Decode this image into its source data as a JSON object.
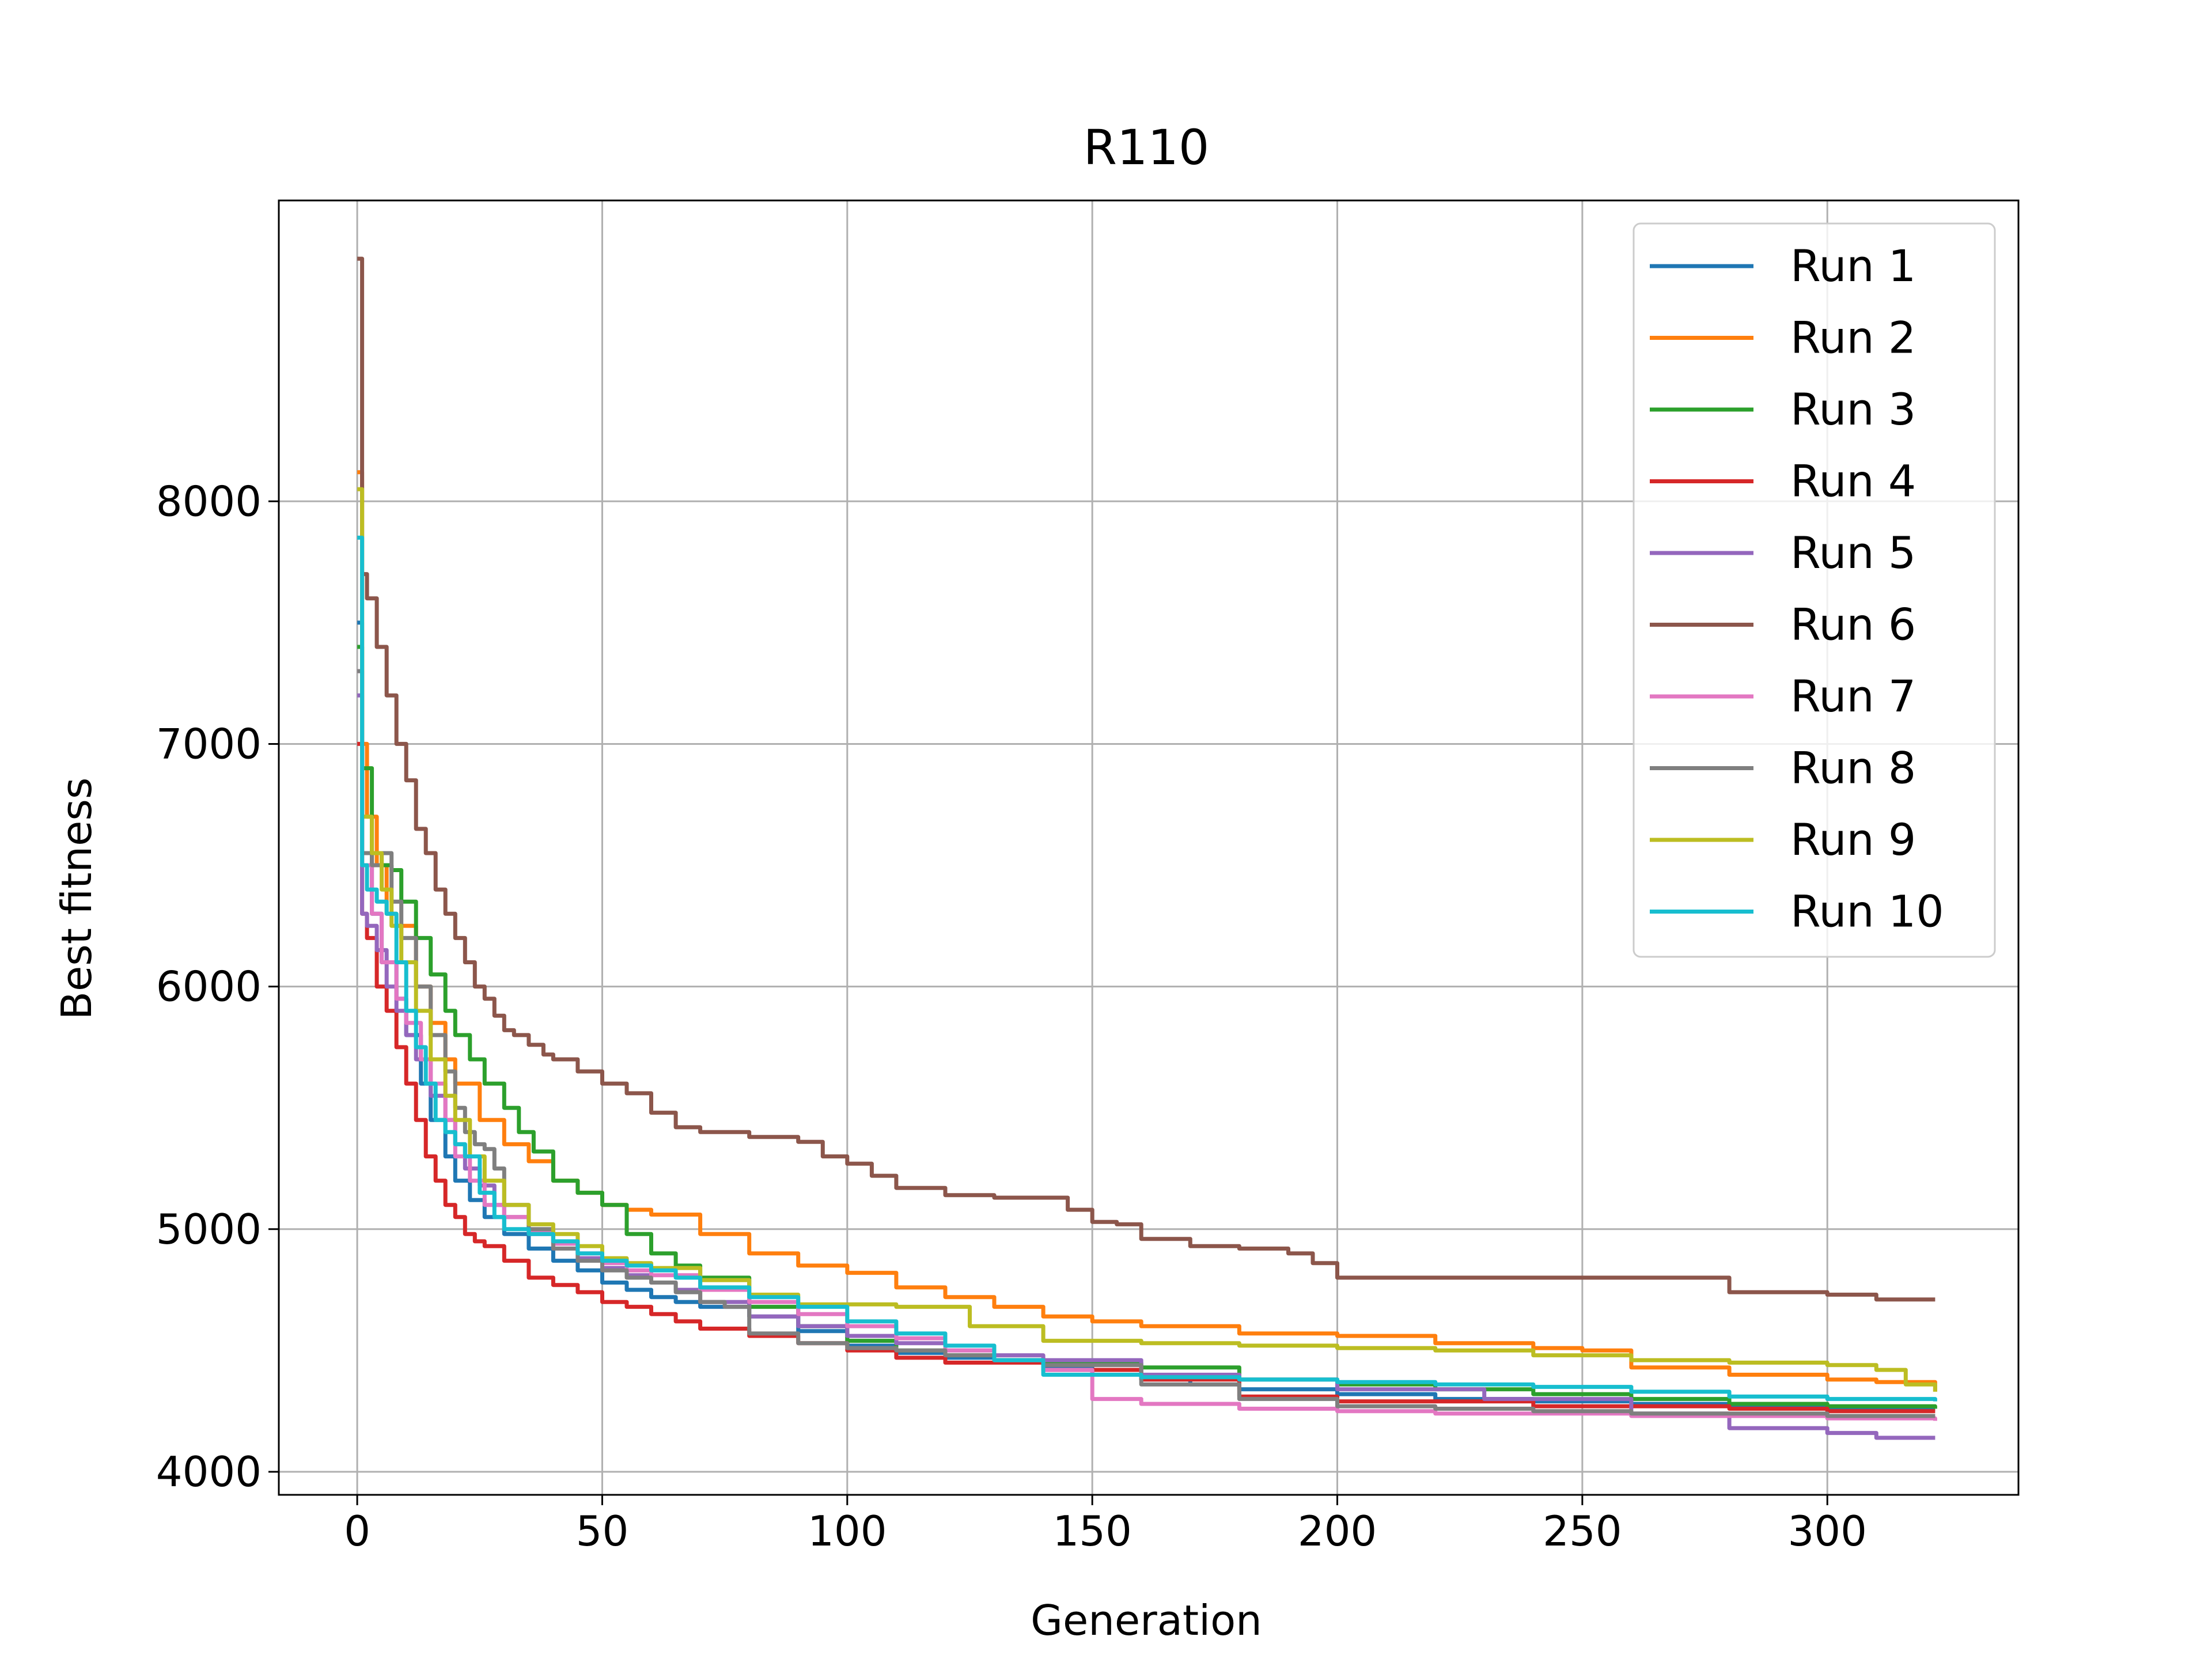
{
  "chart_data": {
    "type": "line",
    "title": "R110",
    "xlabel": "Generation",
    "ylabel": "Best fitness",
    "xlim": [
      -16,
      339
    ],
    "ylim": [
      3905,
      9240
    ],
    "xticks": [
      0,
      50,
      100,
      150,
      200,
      250,
      300
    ],
    "yticks": [
      4000,
      5000,
      6000,
      7000,
      8000
    ],
    "grid": true,
    "legend_position": "top-right",
    "series": [
      {
        "name": "Run 1",
        "color": "#1f77b4",
        "x": [
          0,
          1,
          3,
          5,
          8,
          10,
          13,
          15,
          18,
          20,
          23,
          26,
          30,
          35,
          40,
          45,
          50,
          55,
          60,
          65,
          70,
          80,
          90,
          100,
          110,
          120,
          130,
          140,
          150,
          160,
          170,
          180,
          200,
          220,
          240,
          260,
          280,
          300,
          322
        ],
        "y": [
          7500,
          6500,
          6300,
          6100,
          5950,
          5800,
          5600,
          5450,
          5300,
          5200,
          5120,
          5050,
          4980,
          4920,
          4870,
          4830,
          4780,
          4750,
          4720,
          4700,
          4680,
          4640,
          4580,
          4520,
          4490,
          4470,
          4450,
          4430,
          4400,
          4380,
          4360,
          4340,
          4320,
          4300,
          4290,
          4280,
          4270,
          4260,
          4260
        ]
      },
      {
        "name": "Run 2",
        "color": "#ff7f0e",
        "x": [
          0,
          1,
          2,
          4,
          6,
          8,
          10,
          12,
          15,
          18,
          20,
          25,
          30,
          35,
          40,
          45,
          50,
          55,
          60,
          70,
          80,
          90,
          100,
          110,
          120,
          130,
          140,
          150,
          160,
          180,
          200,
          220,
          240,
          250,
          260,
          280,
          300,
          310,
          322
        ],
        "y": [
          8120,
          7000,
          6700,
          6500,
          6300,
          6250,
          6250,
          6000,
          5850,
          5700,
          5600,
          5450,
          5350,
          5280,
          5200,
          5150,
          5100,
          5080,
          5060,
          4980,
          4900,
          4850,
          4820,
          4760,
          4720,
          4680,
          4640,
          4620,
          4600,
          4570,
          4560,
          4530,
          4510,
          4500,
          4430,
          4400,
          4380,
          4370,
          4330
        ]
      },
      {
        "name": "Run 3",
        "color": "#2ca02c",
        "x": [
          0,
          1,
          3,
          5,
          7,
          9,
          12,
          15,
          18,
          20,
          23,
          26,
          30,
          33,
          36,
          40,
          45,
          50,
          55,
          60,
          65,
          70,
          80,
          90,
          100,
          110,
          120,
          130,
          140,
          160,
          180,
          200,
          220,
          240,
          260,
          280,
          300,
          322
        ],
        "y": [
          7400,
          6900,
          6500,
          6500,
          6480,
          6350,
          6200,
          6050,
          5900,
          5800,
          5700,
          5600,
          5500,
          5400,
          5320,
          5200,
          5150,
          5100,
          4980,
          4900,
          4850,
          4800,
          4680,
          4600,
          4540,
          4500,
          4480,
          4460,
          4450,
          4430,
          4380,
          4360,
          4340,
          4320,
          4300,
          4280,
          4270,
          4260
        ]
      },
      {
        "name": "Run 4",
        "color": "#d62728",
        "x": [
          0,
          1,
          2,
          4,
          6,
          8,
          10,
          12,
          14,
          16,
          18,
          20,
          22,
          24,
          26,
          30,
          35,
          40,
          45,
          50,
          55,
          60,
          65,
          70,
          80,
          90,
          100,
          110,
          120,
          140,
          160,
          180,
          200,
          240,
          280,
          300,
          322
        ],
        "y": [
          7000,
          6300,
          6200,
          6000,
          5900,
          5750,
          5600,
          5450,
          5300,
          5200,
          5100,
          5050,
          4980,
          4950,
          4930,
          4870,
          4800,
          4770,
          4740,
          4700,
          4680,
          4650,
          4620,
          4590,
          4560,
          4530,
          4500,
          4470,
          4450,
          4420,
          4380,
          4310,
          4290,
          4270,
          4260,
          4250,
          4250
        ]
      },
      {
        "name": "Run 5",
        "color": "#9467bd",
        "x": [
          0,
          1,
          2,
          4,
          6,
          8,
          10,
          12,
          15,
          18,
          20,
          22,
          25,
          28,
          30,
          35,
          40,
          45,
          50,
          55,
          60,
          65,
          70,
          80,
          90,
          100,
          110,
          120,
          130,
          140,
          160,
          180,
          200,
          230,
          260,
          280,
          300,
          310,
          322
        ],
        "y": [
          7200,
          6300,
          6250,
          6150,
          6000,
          5900,
          5800,
          5700,
          5550,
          5450,
          5350,
          5250,
          5180,
          5100,
          5050,
          4980,
          4920,
          4880,
          4840,
          4810,
          4780,
          4750,
          4700,
          4640,
          4600,
          4560,
          4530,
          4500,
          4480,
          4460,
          4400,
          4380,
          4340,
          4300,
          4240,
          4180,
          4160,
          4140,
          4140
        ]
      },
      {
        "name": "Run 6",
        "color": "#8c564b",
        "x": [
          0,
          1,
          2,
          4,
          6,
          8,
          10,
          12,
          14,
          16,
          18,
          20,
          22,
          24,
          26,
          28,
          30,
          32,
          35,
          38,
          40,
          45,
          50,
          55,
          60,
          65,
          70,
          80,
          90,
          95,
          100,
          105,
          110,
          120,
          130,
          140,
          145,
          150,
          155,
          160,
          170,
          180,
          190,
          195,
          200,
          210,
          220,
          240,
          260,
          275,
          280,
          300,
          310,
          322
        ],
        "y": [
          9000,
          7700,
          7600,
          7400,
          7200,
          7000,
          6850,
          6650,
          6550,
          6400,
          6300,
          6200,
          6100,
          6000,
          5950,
          5880,
          5820,
          5800,
          5760,
          5720,
          5700,
          5650,
          5600,
          5560,
          5480,
          5420,
          5400,
          5380,
          5360,
          5300,
          5270,
          5220,
          5170,
          5140,
          5130,
          5130,
          5080,
          5030,
          5020,
          4960,
          4930,
          4920,
          4900,
          4860,
          4800,
          4800,
          4800,
          4800,
          4800,
          4800,
          4740,
          4730,
          4710,
          4710
        ]
      },
      {
        "name": "Run 7",
        "color": "#e377c2",
        "x": [
          0,
          1,
          3,
          5,
          8,
          10,
          13,
          15,
          18,
          20,
          23,
          26,
          30,
          35,
          40,
          45,
          50,
          55,
          60,
          70,
          80,
          90,
          100,
          110,
          120,
          130,
          140,
          150,
          160,
          180,
          200,
          220,
          240,
          260,
          280,
          300,
          322
        ],
        "y": [
          7300,
          6500,
          6300,
          6100,
          5950,
          5850,
          5700,
          5600,
          5450,
          5300,
          5200,
          5100,
          5050,
          4990,
          4940,
          4900,
          4860,
          4830,
          4810,
          4750,
          4700,
          4650,
          4600,
          4550,
          4500,
          4460,
          4420,
          4300,
          4280,
          4260,
          4250,
          4240,
          4240,
          4230,
          4230,
          4220,
          4210
        ]
      },
      {
        "name": "Run 8",
        "color": "#7f7f7f",
        "x": [
          0,
          1,
          3,
          5,
          7,
          9,
          12,
          15,
          18,
          20,
          22,
          24,
          26,
          28,
          30,
          35,
          40,
          45,
          50,
          55,
          60,
          65,
          70,
          75,
          80,
          90,
          100,
          110,
          120,
          130,
          140,
          160,
          180,
          200,
          220,
          240,
          260,
          280,
          300,
          322
        ],
        "y": [
          7300,
          6550,
          6500,
          6550,
          6350,
          6200,
          6000,
          5800,
          5650,
          5500,
          5400,
          5350,
          5330,
          5250,
          5100,
          5000,
          4920,
          4870,
          4830,
          4800,
          4780,
          4740,
          4700,
          4680,
          4570,
          4530,
          4510,
          4500,
          4480,
          4460,
          4440,
          4360,
          4300,
          4270,
          4260,
          4250,
          4240,
          4240,
          4230,
          4230
        ]
      },
      {
        "name": "Run 9",
        "color": "#bcbd22",
        "x": [
          0,
          1,
          3,
          5,
          7,
          9,
          12,
          15,
          18,
          20,
          23,
          26,
          30,
          35,
          40,
          45,
          50,
          55,
          60,
          70,
          80,
          90,
          100,
          110,
          120,
          125,
          140,
          160,
          180,
          200,
          220,
          240,
          260,
          280,
          300,
          310,
          316,
          322
        ],
        "y": [
          8050,
          6700,
          6550,
          6400,
          6250,
          6100,
          5900,
          5700,
          5550,
          5450,
          5300,
          5200,
          5100,
          5020,
          4980,
          4930,
          4880,
          4860,
          4840,
          4790,
          4730,
          4690,
          4690,
          4680,
          4680,
          4600,
          4540,
          4530,
          4520,
          4510,
          4500,
          4480,
          4460,
          4450,
          4440,
          4420,
          4360,
          4330
        ]
      },
      {
        "name": "Run 10",
        "color": "#17becf",
        "x": [
          0,
          1,
          2,
          4,
          6,
          8,
          10,
          12,
          14,
          16,
          18,
          20,
          22,
          25,
          28,
          30,
          35,
          40,
          45,
          50,
          55,
          60,
          65,
          70,
          80,
          90,
          100,
          110,
          120,
          130,
          140,
          160,
          180,
          200,
          220,
          240,
          260,
          280,
          300,
          322
        ],
        "y": [
          7850,
          6500,
          6400,
          6350,
          6300,
          6100,
          5900,
          5750,
          5600,
          5450,
          5400,
          5350,
          5300,
          5150,
          5050,
          5000,
          4980,
          4950,
          4900,
          4870,
          4850,
          4830,
          4800,
          4760,
          4720,
          4680,
          4620,
          4570,
          4520,
          4460,
          4400,
          4390,
          4380,
          4370,
          4360,
          4350,
          4330,
          4310,
          4300,
          4290
        ]
      }
    ]
  }
}
